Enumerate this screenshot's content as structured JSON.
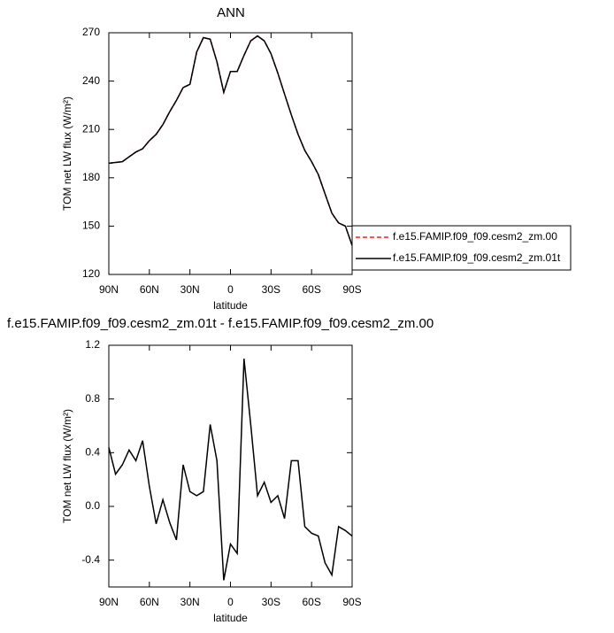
{
  "chart_data": [
    {
      "type": "line",
      "title": "ANN",
      "xlabel": "latitude",
      "ylabel": "TOM net LW flux (W/m²)",
      "x": [
        90,
        85,
        80,
        75,
        70,
        65,
        60,
        55,
        50,
        45,
        40,
        35,
        30,
        25,
        20,
        15,
        10,
        5,
        0,
        -5,
        -10,
        -15,
        -20,
        -25,
        -30,
        -35,
        -40,
        -45,
        -50,
        -55,
        -60,
        -65,
        -70,
        -75,
        -80,
        -85,
        -90
      ],
      "xlim": [
        90,
        -90
      ],
      "xticks": [
        {
          "value": 90,
          "label": "90N"
        },
        {
          "value": 60,
          "label": "60N"
        },
        {
          "value": 30,
          "label": "30N"
        },
        0,
        {
          "value": -30,
          "label": "30S"
        },
        {
          "value": -60,
          "label": "60S"
        },
        {
          "value": -90,
          "label": "90S"
        }
      ],
      "ylim": [
        120,
        270
      ],
      "yticks": [
        120,
        150,
        180,
        210,
        240,
        270
      ],
      "legend": "right",
      "series": [
        {
          "name": "f.e15.FAMIP.f09_f09.cesm2_zm.00",
          "color": "#e0262b",
          "dashed": true,
          "values": [
            189,
            189.5,
            190,
            193,
            196,
            198,
            203,
            207,
            213,
            221,
            228,
            236,
            238,
            258,
            267,
            266,
            252,
            233,
            246,
            246,
            256,
            265,
            268,
            265,
            257,
            245,
            232,
            219,
            207,
            197,
            190,
            182,
            170,
            158,
            152,
            150,
            138
          ]
        },
        {
          "name": "f.e15.FAMIP.f09_f09.cesm2_zm.01t",
          "color": "#000000",
          "dashed": false,
          "values": [
            189,
            189.5,
            190,
            193,
            196,
            198,
            203,
            207,
            213,
            221,
            228,
            236,
            238,
            258,
            267,
            266,
            252,
            233,
            246,
            246,
            256,
            265,
            268,
            265,
            257,
            245,
            232,
            219,
            207,
            197,
            190,
            182,
            170,
            158,
            152,
            150,
            138
          ]
        }
      ]
    },
    {
      "type": "line",
      "title": "f.e15.FAMIP.f09_f09.cesm2_zm.01t - f.e15.FAMIP.f09_f09.cesm2_zm.00",
      "xlabel": "latitude",
      "ylabel": "TOM net LW flux (W/m²)",
      "x": [
        90,
        85,
        80,
        75,
        70,
        65,
        60,
        55,
        50,
        45,
        40,
        35,
        30,
        25,
        20,
        15,
        10,
        5,
        0,
        -5,
        -10,
        -15,
        -20,
        -25,
        -30,
        -35,
        -40,
        -45,
        -50,
        -55,
        -60,
        -65,
        -70,
        -75,
        -80,
        -85,
        -90
      ],
      "xlim": [
        90,
        -90
      ],
      "xticks": [
        {
          "value": 90,
          "label": "90N"
        },
        {
          "value": 60,
          "label": "60N"
        },
        {
          "value": 30,
          "label": "30N"
        },
        0,
        {
          "value": -30,
          "label": "30S"
        },
        {
          "value": -60,
          "label": "60S"
        },
        {
          "value": -90,
          "label": "90S"
        }
      ],
      "ylim": [
        -0.6,
        1.2
      ],
      "yticks": [
        -0.4,
        {
          "value": 0,
          "label": "0.0"
        },
        0.4,
        0.8,
        1.2
      ],
      "color": "#000000",
      "values": [
        0.44,
        0.24,
        0.31,
        0.42,
        0.34,
        0.49,
        0.15,
        -0.13,
        0.05,
        -0.12,
        -0.25,
        0.31,
        0.11,
        0.08,
        0.11,
        0.61,
        0.34,
        -0.55,
        -0.28,
        -0.35,
        1.1,
        0.61,
        0.08,
        0.18,
        0.03,
        0.08,
        -0.09,
        0.34,
        0.34,
        -0.15,
        -0.2,
        -0.22,
        -0.42,
        -0.51,
        -0.15,
        -0.18,
        -0.22
      ]
    }
  ]
}
